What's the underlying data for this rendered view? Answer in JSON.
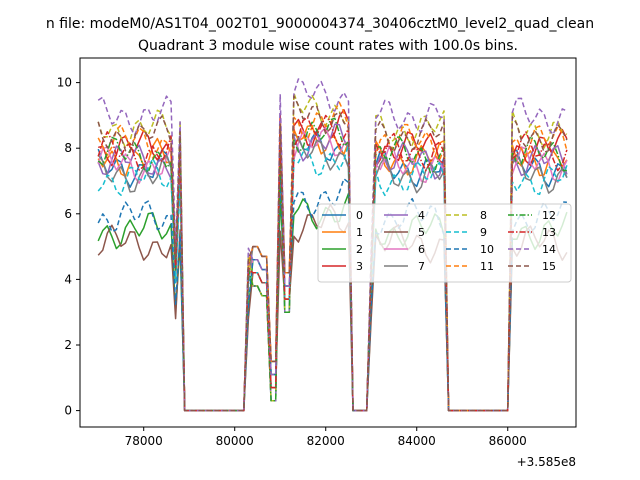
{
  "figure": {
    "suptitle": "n file: modeM0/AS1T04_002T01_9000004374_30406cztM0_level2_quad_clean"
  },
  "chart_data": {
    "type": "line",
    "title": "Quadrant 3 module wise count rates with 100.0s bins.",
    "xlabel": "",
    "ylabel": "",
    "x_offset_label": "+3.585e8",
    "x_offset": 358500000,
    "xlim": [
      76600,
      87500
    ],
    "ylim": [
      -0.5,
      10.75
    ],
    "x_ticks": [
      78000,
      80000,
      82000,
      84000,
      86000
    ],
    "x_tick_labels": [
      "78000",
      "80000",
      "82000",
      "84000",
      "86000"
    ],
    "y_ticks": [
      0,
      2,
      4,
      6,
      8,
      10
    ],
    "y_tick_labels": [
      "0",
      "2",
      "4",
      "6",
      "8",
      "10"
    ],
    "legend_position": "center-right",
    "legend_columns": 4,
    "segments": [
      [
        77000,
        78800
      ],
      [
        80300,
        80800
      ],
      [
        80900,
        82500
      ],
      [
        83000,
        84600
      ],
      [
        86100,
        87300
      ]
    ],
    "gaps_zero": [
      [
        78800,
        80300
      ],
      [
        82700,
        82900
      ],
      [
        84600,
        86100
      ]
    ],
    "series": [
      {
        "name": "0",
        "color": "#1f77b4",
        "dash": "solid",
        "level": 7.4
      },
      {
        "name": "1",
        "color": "#ff7f0e",
        "dash": "solid",
        "level": 7.7
      },
      {
        "name": "2",
        "color": "#2ca02c",
        "dash": "solid",
        "level": 5.5
      },
      {
        "name": "3",
        "color": "#d62728",
        "dash": "solid",
        "level": 8.0
      },
      {
        "name": "4",
        "color": "#9467bd",
        "dash": "solid",
        "level": 7.6
      },
      {
        "name": "5",
        "color": "#8c564b",
        "dash": "solid",
        "level": 5.1
      },
      {
        "name": "6",
        "color": "#e377c2",
        "dash": "solid",
        "level": 7.5
      },
      {
        "name": "7",
        "color": "#7f7f7f",
        "dash": "solid",
        "level": 7.2
      },
      {
        "name": "8",
        "color": "#bcbd22",
        "dash": "dashed",
        "level": 8.6
      },
      {
        "name": "9",
        "color": "#17becf",
        "dash": "dashed",
        "level": 7.1
      },
      {
        "name": "10",
        "color": "#1f77b4",
        "dash": "dashed",
        "level": 5.9
      },
      {
        "name": "11",
        "color": "#ff7f0e",
        "dash": "dashed",
        "level": 8.2
      },
      {
        "name": "12",
        "color": "#2ca02c",
        "dash": "dashdot",
        "level": 7.8
      },
      {
        "name": "13",
        "color": "#d62728",
        "dash": "dashdot",
        "level": 7.9
      },
      {
        "name": "14",
        "color": "#9467bd",
        "dash": "dashed",
        "level": 9.0
      },
      {
        "name": "15",
        "color": "#8c564b",
        "dash": "dashed",
        "level": 8.4
      }
    ]
  }
}
